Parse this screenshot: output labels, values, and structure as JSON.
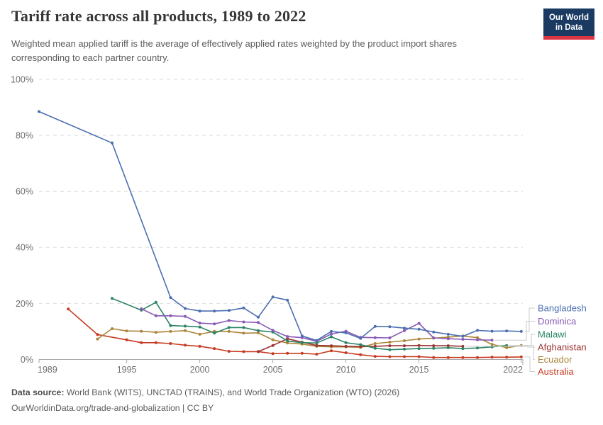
{
  "header": {
    "title": "Tariff rate across all products, 1989 to 2022",
    "subtitle": "Weighted mean applied tariff is the average of effectively applied rates weighted by the product import shares corresponding to each partner country.",
    "logo": {
      "line1": "Our World",
      "line2": "in Data",
      "bg_color": "#1a3a62",
      "stripe_color": "#dc3545"
    }
  },
  "chart_data": {
    "type": "line",
    "title": "Tariff rate across all products, 1989 to 2022",
    "xlabel": "",
    "ylabel": "",
    "unit": "%",
    "xlim": [
      1989,
      2022
    ],
    "ylim": [
      0,
      100
    ],
    "x_ticks": [
      1989,
      1995,
      2000,
      2005,
      2010,
      2015,
      2022
    ],
    "y_ticks": [
      0,
      20,
      40,
      60,
      80,
      100
    ],
    "grid": "horizontal-dashed",
    "legend_position": "right-of-line-ends",
    "series": [
      {
        "name": "Bangladesh",
        "color": "#4c6fb1",
        "points": [
          [
            1989,
            88.5
          ],
          [
            1994,
            77.3
          ],
          [
            1998,
            22.1
          ],
          [
            1999,
            18.2
          ],
          [
            2000,
            17.3
          ],
          [
            2001,
            17.3
          ],
          [
            2002,
            17.5
          ],
          [
            2003,
            18.4
          ],
          [
            2004,
            15.1
          ],
          [
            2005,
            22.3
          ],
          [
            2006,
            21.2
          ],
          [
            2007,
            8.4
          ],
          [
            2008,
            6.8
          ],
          [
            2009,
            10.0
          ],
          [
            2010,
            9.5
          ],
          [
            2011,
            7.5
          ],
          [
            2012,
            11.8
          ],
          [
            2013,
            11.7
          ],
          [
            2014,
            11.2
          ],
          [
            2015,
            10.8
          ],
          [
            2016,
            9.8
          ],
          [
            2017,
            9.0
          ],
          [
            2018,
            8.3
          ],
          [
            2019,
            10.4
          ],
          [
            2020,
            10.1
          ],
          [
            2021,
            10.2
          ],
          [
            2022,
            10.0
          ]
        ]
      },
      {
        "name": "Dominica",
        "color": "#8859b6",
        "points": [
          [
            1996,
            18.1
          ],
          [
            1997,
            15.6
          ],
          [
            1998,
            15.6
          ],
          [
            1999,
            15.4
          ],
          [
            2000,
            13.0
          ],
          [
            2001,
            12.7
          ],
          [
            2002,
            13.9
          ],
          [
            2003,
            13.4
          ],
          [
            2004,
            13.2
          ],
          [
            2005,
            10.4
          ],
          [
            2006,
            8.2
          ],
          [
            2007,
            7.8
          ],
          [
            2008,
            6.5
          ],
          [
            2009,
            9.1
          ],
          [
            2010,
            10.1
          ],
          [
            2011,
            7.9
          ],
          [
            2012,
            7.8
          ],
          [
            2013,
            7.7
          ],
          [
            2014,
            10.3
          ],
          [
            2015,
            12.9
          ],
          [
            2016,
            7.7
          ],
          [
            2017,
            7.4
          ],
          [
            2018,
            7.2
          ],
          [
            2019,
            7.0
          ],
          [
            2020,
            6.9
          ]
        ]
      },
      {
        "name": "Malawi",
        "color": "#2c8465",
        "points": [
          [
            1994,
            21.8
          ],
          [
            1996,
            17.6
          ],
          [
            1997,
            20.4
          ],
          [
            1998,
            12.1
          ],
          [
            1999,
            11.9
          ],
          [
            2000,
            11.6
          ],
          [
            2001,
            9.4
          ],
          [
            2002,
            11.4
          ],
          [
            2003,
            11.4
          ],
          [
            2004,
            10.3
          ],
          [
            2005,
            9.8
          ],
          [
            2006,
            6.6
          ],
          [
            2007,
            6.0
          ],
          [
            2008,
            5.9
          ],
          [
            2009,
            8.1
          ],
          [
            2010,
            6.0
          ],
          [
            2011,
            5.3
          ],
          [
            2012,
            4.0
          ],
          [
            2013,
            3.5
          ],
          [
            2014,
            3.7
          ],
          [
            2015,
            3.9
          ],
          [
            2016,
            4.0
          ],
          [
            2017,
            4.2
          ],
          [
            2018,
            3.9
          ],
          [
            2019,
            4.1
          ],
          [
            2020,
            4.5
          ],
          [
            2021,
            5.0
          ]
        ]
      },
      {
        "name": "Afghanistan",
        "color": "#9c3332",
        "points": [
          [
            2004,
            2.8
          ],
          [
            2005,
            5.0
          ],
          [
            2006,
            7.4
          ],
          [
            2007,
            6.2
          ],
          [
            2008,
            5.0
          ],
          [
            2009,
            4.9
          ],
          [
            2010,
            4.7
          ],
          [
            2011,
            4.6
          ],
          [
            2012,
            4.7
          ],
          [
            2013,
            4.9
          ],
          [
            2014,
            4.9
          ],
          [
            2015,
            5.0
          ],
          [
            2016,
            4.9
          ],
          [
            2017,
            4.9
          ],
          [
            2018,
            4.7
          ]
        ]
      },
      {
        "name": "Ecuador",
        "color": "#ad8539",
        "points": [
          [
            1993,
            7.3
          ],
          [
            1994,
            11.0
          ],
          [
            1995,
            10.2
          ],
          [
            1996,
            10.1
          ],
          [
            1997,
            9.7
          ],
          [
            1998,
            10.0
          ],
          [
            1999,
            10.3
          ],
          [
            2000,
            9.0
          ],
          [
            2001,
            10.0
          ],
          [
            2002,
            10.0
          ],
          [
            2003,
            9.4
          ],
          [
            2004,
            9.5
          ],
          [
            2005,
            7.0
          ],
          [
            2006,
            5.9
          ],
          [
            2007,
            5.5
          ],
          [
            2008,
            4.7
          ],
          [
            2009,
            4.5
          ],
          [
            2010,
            4.5
          ],
          [
            2011,
            4.3
          ],
          [
            2012,
            5.7
          ],
          [
            2013,
            6.2
          ],
          [
            2014,
            6.7
          ],
          [
            2015,
            7.3
          ],
          [
            2016,
            7.6
          ],
          [
            2017,
            8.0
          ],
          [
            2018,
            8.4
          ],
          [
            2019,
            7.8
          ],
          [
            2020,
            5.4
          ],
          [
            2021,
            4.2
          ],
          [
            2022,
            5.0
          ]
        ]
      },
      {
        "name": "Australia",
        "color": "#c63a21",
        "points": [
          [
            1991,
            18.0
          ],
          [
            1993,
            8.9
          ],
          [
            1995,
            7.0
          ],
          [
            1996,
            6.0
          ],
          [
            1997,
            6.0
          ],
          [
            1998,
            5.7
          ],
          [
            1999,
            5.1
          ],
          [
            2000,
            4.7
          ],
          [
            2001,
            3.9
          ],
          [
            2002,
            2.9
          ],
          [
            2003,
            2.8
          ],
          [
            2004,
            2.8
          ],
          [
            2005,
            2.1
          ],
          [
            2006,
            2.2
          ],
          [
            2007,
            2.2
          ],
          [
            2008,
            1.9
          ],
          [
            2009,
            3.1
          ],
          [
            2010,
            2.4
          ],
          [
            2011,
            1.7
          ],
          [
            2012,
            1.1
          ],
          [
            2013,
            1.0
          ],
          [
            2014,
            1.0
          ],
          [
            2015,
            1.0
          ],
          [
            2016,
            0.7
          ],
          [
            2017,
            0.7
          ],
          [
            2018,
            0.7
          ],
          [
            2019,
            0.7
          ],
          [
            2020,
            0.8
          ],
          [
            2021,
            0.8
          ],
          [
            2022,
            0.9
          ]
        ]
      }
    ]
  },
  "footer": {
    "source_label": "Data source:",
    "source_text": "World Bank (WITS), UNCTAD (TRAINS), and World Trade Organization (WTO) (2026)",
    "link_line": "OurWorldinData.org/trade-and-globalization | CC BY"
  }
}
